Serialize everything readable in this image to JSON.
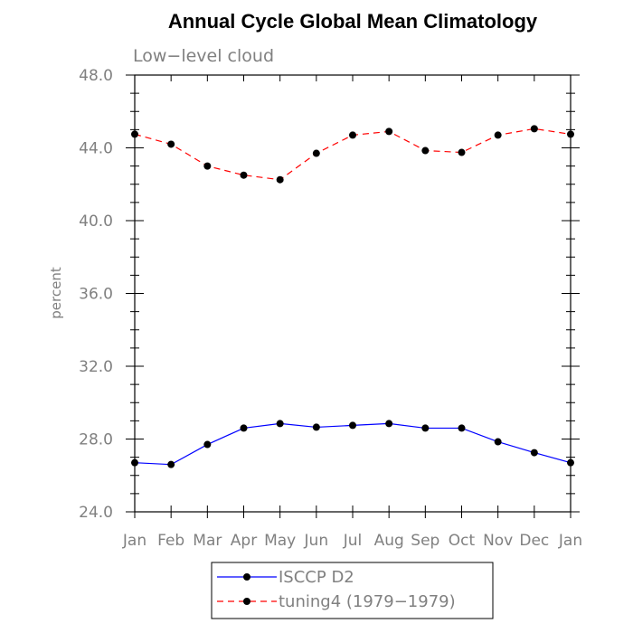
{
  "chart_data": {
    "type": "line",
    "title": "Annual Cycle Global Mean Climatology",
    "subtitle": "Low−level cloud",
    "xlabel": "",
    "ylabel": "percent",
    "categories": [
      "Jan",
      "Feb",
      "Mar",
      "Apr",
      "May",
      "Jun",
      "Jul",
      "Aug",
      "Sep",
      "Oct",
      "Nov",
      "Dec",
      "Jan"
    ],
    "ylim": [
      24.0,
      48.0
    ],
    "yticks": [
      "24.0",
      "28.0",
      "32.0",
      "36.0",
      "40.0",
      "44.0",
      "48.0"
    ],
    "grid": false,
    "legend_position": "bottom",
    "series": [
      {
        "name": "ISCCP D2",
        "color": "#0000ff",
        "dash": "solid",
        "marker": "filled-circle",
        "values": [
          26.7,
          26.6,
          27.7,
          28.6,
          28.85,
          28.65,
          28.75,
          28.85,
          28.6,
          28.6,
          27.85,
          27.25,
          26.7
        ]
      },
      {
        "name": "tuning4 (1979−1979)",
        "color": "#ff0000",
        "dash": "dashed",
        "marker": "filled-circle",
        "values": [
          44.75,
          44.2,
          43.0,
          42.5,
          42.25,
          43.7,
          44.7,
          44.9,
          43.85,
          43.75,
          44.7,
          45.05,
          44.75
        ]
      }
    ]
  }
}
